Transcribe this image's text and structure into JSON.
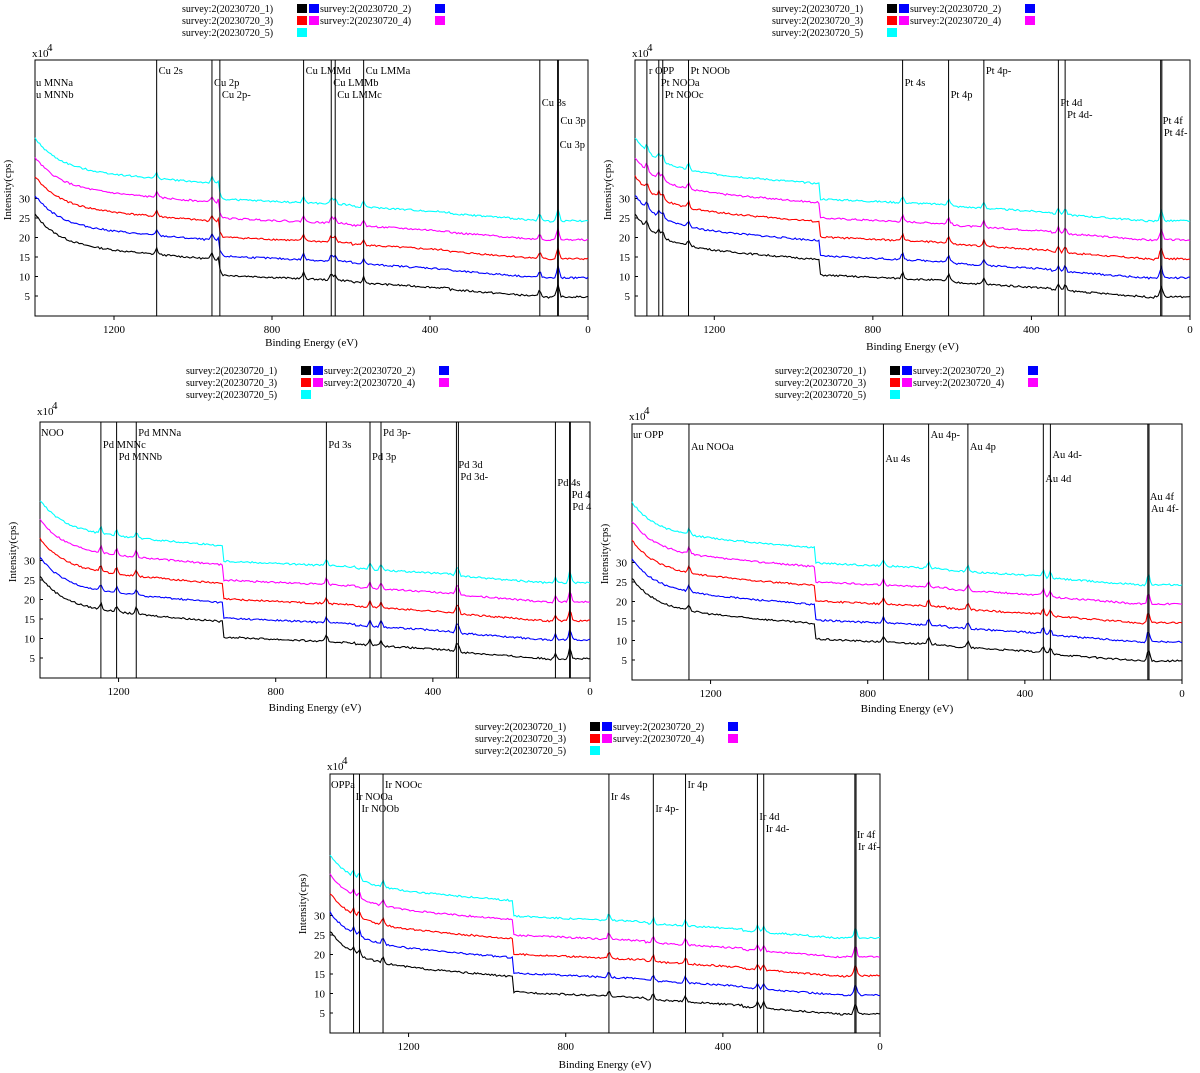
{
  "colors": {
    "survey_1": "#000000",
    "survey_2": "#0000ff",
    "survey_3": "#ff0000",
    "survey_4": "#ff00ff",
    "survey_5": "#00ffff"
  },
  "chart_data": [
    {
      "type": "line",
      "element": "Cu",
      "xlabel": "Binding Energy (eV)",
      "ylabel": "Intensity(cps)",
      "y_multiplier": "x10",
      "y_exponent": "4",
      "xlim": [
        1400,
        0
      ],
      "x_reversed": true,
      "x_ticks": [
        "1200",
        "800",
        "400",
        "0"
      ],
      "y_ticks": [
        "5",
        "10",
        "15",
        "20",
        "25",
        "30"
      ],
      "legend": [
        "survey:2(20230720_1)",
        "survey:2(20230720_2)",
        "survey:2(20230720_3)",
        "survey:2(20230720_4)",
        "survey:2(20230720_5)"
      ],
      "series": [
        {
          "name": "survey:2(20230720_1)",
          "color": "#000000",
          "offset": 0
        },
        {
          "name": "survey:2(20230720_2)",
          "color": "#0000ff",
          "offset": 1
        },
        {
          "name": "survey:2(20230720_3)",
          "color": "#ff0000",
          "offset": 2
        },
        {
          "name": "survey:2(20230720_4)",
          "color": "#ff00ff",
          "offset": 3
        },
        {
          "name": "survey:2(20230720_5)",
          "color": "#00ffff",
          "offset": 4
        }
      ],
      "peaks": [
        {
          "x": 1092,
          "text": "Cu 2s"
        },
        {
          "x": 952,
          "text": "Cu 2p"
        },
        {
          "x": 932,
          "text": "Cu 2p-"
        },
        {
          "x": 720,
          "text": "Cu LMMd"
        },
        {
          "x": 650,
          "text": "Cu LMMb"
        },
        {
          "x": 640,
          "text": "Cu LMMc"
        },
        {
          "x": 568,
          "text": "Cu LMMa"
        },
        {
          "x": 122,
          "text": "Cu 3s"
        },
        {
          "x": 77,
          "text": "Cu 3p"
        },
        {
          "x": 75,
          "text": "Cu 3p"
        },
        {
          "x": 1400,
          "text": "u MNNa"
        },
        {
          "x": 1400,
          "text": "u MNNb"
        }
      ]
    },
    {
      "type": "line",
      "element": "Pt",
      "xlabel": "Binding Energy (eV)",
      "ylabel": "Intensity(cps)",
      "y_multiplier": "x10",
      "y_exponent": "4",
      "xlim": [
        1400,
        0
      ],
      "x_reversed": true,
      "x_ticks": [
        "1200",
        "800",
        "400",
        "0"
      ],
      "y_ticks": [
        "5",
        "10",
        "15",
        "20",
        "25",
        "30"
      ],
      "legend": [
        "survey:2(20230720_1)",
        "survey:2(20230720_2)",
        "survey:2(20230720_3)",
        "survey:2(20230720_4)",
        "survey:2(20230720_5)"
      ],
      "series": [
        {
          "name": "survey:2(20230720_1)",
          "color": "#000000",
          "offset": 0
        },
        {
          "name": "survey:2(20230720_2)",
          "color": "#0000ff",
          "offset": 1
        },
        {
          "name": "survey:2(20230720_3)",
          "color": "#ff0000",
          "offset": 2
        },
        {
          "name": "survey:2(20230720_4)",
          "color": "#ff00ff",
          "offset": 3
        },
        {
          "name": "survey:2(20230720_5)",
          "color": "#00ffff",
          "offset": 4
        }
      ],
      "peaks": [
        {
          "x": 1370,
          "text": "r OPP"
        },
        {
          "x": 1340,
          "text": "Pt NOOa"
        },
        {
          "x": 1330,
          "text": "Pt NOOc"
        },
        {
          "x": 1265,
          "text": "Pt NOOb"
        },
        {
          "x": 725,
          "text": "Pt 4s"
        },
        {
          "x": 609,
          "text": "Pt 4p"
        },
        {
          "x": 520,
          "text": "Pt 4p-"
        },
        {
          "x": 332,
          "text": "Pt 4d"
        },
        {
          "x": 315,
          "text": "Pt 4d-"
        },
        {
          "x": 74,
          "text": "Pt 4f"
        },
        {
          "x": 71,
          "text": "Pt 4f-"
        }
      ]
    },
    {
      "type": "line",
      "element": "Pd",
      "xlabel": "Binding Energy (eV)",
      "ylabel": "Intensity(cps)",
      "y_multiplier": "x10",
      "y_exponent": "4",
      "xlim": [
        1400,
        0
      ],
      "x_reversed": true,
      "x_ticks": [
        "1200",
        "800",
        "400",
        "0"
      ],
      "y_ticks": [
        "5",
        "10",
        "15",
        "20",
        "25",
        "30"
      ],
      "legend": [
        "survey:2(20230720_1)",
        "survey:2(20230720_2)",
        "survey:2(20230720_3)",
        "survey:2(20230720_4)",
        "survey:2(20230720_5)"
      ],
      "series": [
        {
          "name": "survey:2(20230720_1)",
          "color": "#000000",
          "offset": 0
        },
        {
          "name": "survey:2(20230720_2)",
          "color": "#0000ff",
          "offset": 1
        },
        {
          "name": "survey:2(20230720_3)",
          "color": "#ff0000",
          "offset": 2
        },
        {
          "name": "survey:2(20230720_4)",
          "color": "#ff00ff",
          "offset": 3
        },
        {
          "name": "survey:2(20230720_5)",
          "color": "#00ffff",
          "offset": 4
        }
      ],
      "peaks": [
        {
          "x": 1400,
          "text": "NOO"
        },
        {
          "x": 1245,
          "text": "Pd MNNc"
        },
        {
          "x": 1205,
          "text": "Pd MNNb"
        },
        {
          "x": 1155,
          "text": "Pd MNNa"
        },
        {
          "x": 671,
          "text": "Pd 3s"
        },
        {
          "x": 560,
          "text": "Pd 3p"
        },
        {
          "x": 532,
          "text": "Pd 3p-"
        },
        {
          "x": 340,
          "text": "Pd 3d"
        },
        {
          "x": 335,
          "text": "Pd 3d-"
        },
        {
          "x": 88,
          "text": "Pd 4s"
        },
        {
          "x": 52,
          "text": "Pd 4"
        },
        {
          "x": 50,
          "text": "Pd 4"
        }
      ]
    },
    {
      "type": "line",
      "element": "Au",
      "xlabel": "Binding Energy (eV)",
      "ylabel": "Intensity(cps)",
      "y_multiplier": "x10",
      "y_exponent": "4",
      "xlim": [
        1400,
        0
      ],
      "x_reversed": true,
      "x_ticks": [
        "1200",
        "800",
        "400",
        "0"
      ],
      "y_ticks": [
        "5",
        "10",
        "15",
        "20",
        "25",
        "30"
      ],
      "legend": [
        "survey:2(20230720_1)",
        "survey:2(20230720_2)",
        "survey:2(20230720_3)",
        "survey:2(20230720_4)",
        "survey:2(20230720_5)"
      ],
      "series": [
        {
          "name": "survey:2(20230720_1)",
          "color": "#000000",
          "offset": 0
        },
        {
          "name": "survey:2(20230720_2)",
          "color": "#0000ff",
          "offset": 1
        },
        {
          "name": "survey:2(20230720_3)",
          "color": "#ff0000",
          "offset": 2
        },
        {
          "name": "survey:2(20230720_4)",
          "color": "#ff00ff",
          "offset": 3
        },
        {
          "name": "survey:2(20230720_5)",
          "color": "#00ffff",
          "offset": 4
        }
      ],
      "peaks": [
        {
          "x": 1400,
          "text": "ur OPP"
        },
        {
          "x": 1255,
          "text": "Au NOOa"
        },
        {
          "x": 760,
          "text": "Au 4s"
        },
        {
          "x": 645,
          "text": "Au 4p-"
        },
        {
          "x": 545,
          "text": "Au 4p"
        },
        {
          "x": 353,
          "text": "Au 4d"
        },
        {
          "x": 335,
          "text": "Au 4d-"
        },
        {
          "x": 87,
          "text": "Au 4f"
        },
        {
          "x": 84,
          "text": "Au 4f-"
        }
      ]
    },
    {
      "type": "line",
      "element": "Ir",
      "xlabel": "Binding Energy (eV)",
      "ylabel": "Intensity(cps)",
      "y_multiplier": "x10",
      "y_exponent": "4",
      "xlim": [
        1400,
        0
      ],
      "x_reversed": true,
      "x_ticks": [
        "1200",
        "800",
        "400",
        "0"
      ],
      "y_ticks": [
        "5",
        "10",
        "15",
        "20",
        "25",
        "30"
      ],
      "legend": [
        "survey:2(20230720_1)",
        "survey:2(20230720_2)",
        "survey:2(20230720_3)",
        "survey:2(20230720_4)",
        "survey:2(20230720_5)"
      ],
      "series": [
        {
          "name": "survey:2(20230720_1)",
          "color": "#000000",
          "offset": 0
        },
        {
          "name": "survey:2(20230720_2)",
          "color": "#0000ff",
          "offset": 1
        },
        {
          "name": "survey:2(20230720_3)",
          "color": "#ff0000",
          "offset": 2
        },
        {
          "name": "survey:2(20230720_4)",
          "color": "#ff00ff",
          "offset": 3
        },
        {
          "name": "survey:2(20230720_5)",
          "color": "#00ffff",
          "offset": 4
        }
      ],
      "peaks": [
        {
          "x": 1400,
          "text": "OPPa"
        },
        {
          "x": 1340,
          "text": "Ir NOOa"
        },
        {
          "x": 1325,
          "text": "Ir NOOb"
        },
        {
          "x": 1265,
          "text": "Ir NOOc"
        },
        {
          "x": 690,
          "text": "Ir 4s"
        },
        {
          "x": 577,
          "text": "Ir 4p-"
        },
        {
          "x": 495,
          "text": "Ir 4p"
        },
        {
          "x": 312,
          "text": "Ir 4d"
        },
        {
          "x": 296,
          "text": "Ir 4d-"
        },
        {
          "x": 64,
          "text": "Ir 4f"
        },
        {
          "x": 61,
          "text": "Ir 4f-"
        }
      ]
    }
  ]
}
